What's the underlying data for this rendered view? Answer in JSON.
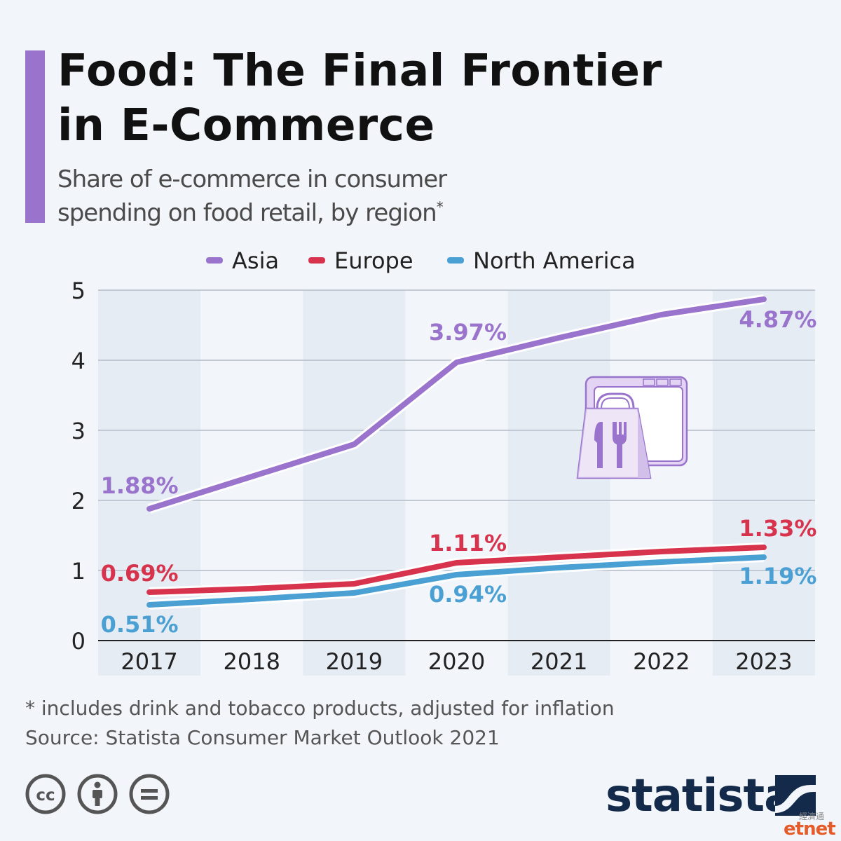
{
  "title": "Food: The Final Frontier in E-Commerce",
  "title_lines": [
    "Food: The Final Frontier",
    "in E-Commerce"
  ],
  "subtitle_lines": [
    "Share of e-commerce in consumer",
    "spending on food retail, by region"
  ],
  "subtitle_mark": "*",
  "footnote": "* includes drink and tobacco products, adjusted for inflation",
  "source": "Source: Statista Consumer Market Outlook 2021",
  "brand": "statista",
  "watermark": "etnet",
  "watermark_cn": "經濟通",
  "colors": {
    "accent": "#9a74cc",
    "asia": "#9a74cc",
    "europe": "#d7334d",
    "north_america": "#4aa0d3",
    "brand": "#142a4a"
  },
  "chart_data": {
    "type": "line",
    "x": [
      "2017",
      "2018",
      "2019",
      "2020",
      "2021",
      "2022",
      "2023"
    ],
    "ylim": [
      0,
      5
    ],
    "yticks": [
      "0",
      "1",
      "2",
      "3",
      "4",
      "5"
    ],
    "grid": true,
    "legend_position": "top",
    "series": [
      {
        "name": "Asia",
        "key": "asia",
        "color": "#9a74cc",
        "values": [
          1.88,
          2.34,
          2.8,
          3.97,
          4.32,
          4.65,
          4.87
        ],
        "labels": [
          {
            "index": 0,
            "text": "1.88%"
          },
          {
            "index": 3,
            "text": "3.97%"
          },
          {
            "index": 6,
            "text": "4.87%"
          }
        ]
      },
      {
        "name": "Europe",
        "key": "europe",
        "color": "#d7334d",
        "values": [
          0.69,
          0.74,
          0.81,
          1.11,
          1.19,
          1.27,
          1.33
        ],
        "labels": [
          {
            "index": 0,
            "text": "0.69%"
          },
          {
            "index": 3,
            "text": "1.11%"
          },
          {
            "index": 6,
            "text": "1.33%"
          }
        ]
      },
      {
        "name": "North America",
        "key": "north_america",
        "color": "#4aa0d3",
        "values": [
          0.51,
          0.59,
          0.68,
          0.94,
          1.04,
          1.12,
          1.19
        ],
        "labels": [
          {
            "index": 0,
            "text": "0.51%"
          },
          {
            "index": 3,
            "text": "0.94%"
          },
          {
            "index": 6,
            "text": "1.19%"
          }
        ]
      }
    ]
  }
}
